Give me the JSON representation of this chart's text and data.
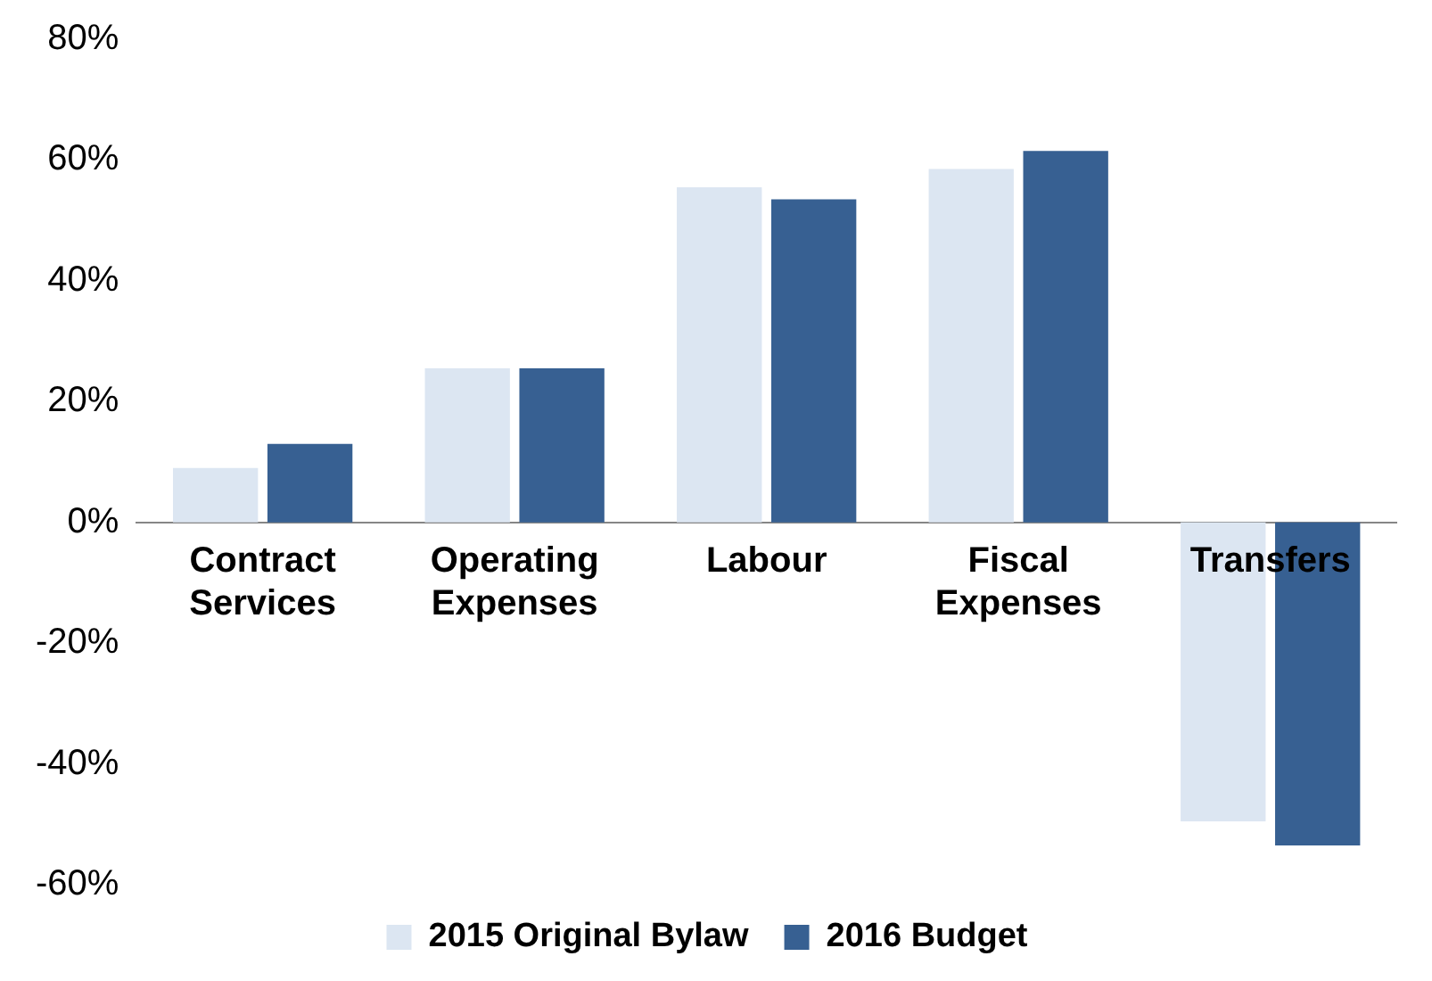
{
  "chart_data": {
    "type": "bar",
    "categories": [
      "Contract Services",
      "Operating Expenses",
      "Labour",
      "Fiscal Expenses",
      "Transfers"
    ],
    "series": [
      {
        "name": "2015 Original Bylaw",
        "color": "#dce6f2",
        "values": [
          9,
          25.5,
          55.5,
          58.5,
          -49.5
        ]
      },
      {
        "name": "2016 Budget",
        "color": "#376092",
        "values": [
          13,
          25.5,
          53.5,
          61.5,
          -53.5
        ]
      }
    ],
    "ylim": [
      -60,
      80
    ],
    "yticks": [
      {
        "value": -60,
        "label": "-60%"
      },
      {
        "value": -40,
        "label": "-40%"
      },
      {
        "value": -20,
        "label": "-20%"
      },
      {
        "value": 0,
        "label": "0%"
      },
      {
        "value": 20,
        "label": "20%"
      },
      {
        "value": 40,
        "label": "40%"
      },
      {
        "value": 60,
        "label": "60%"
      },
      {
        "value": 80,
        "label": "80%"
      }
    ],
    "grid": false,
    "legend": "bottom"
  }
}
